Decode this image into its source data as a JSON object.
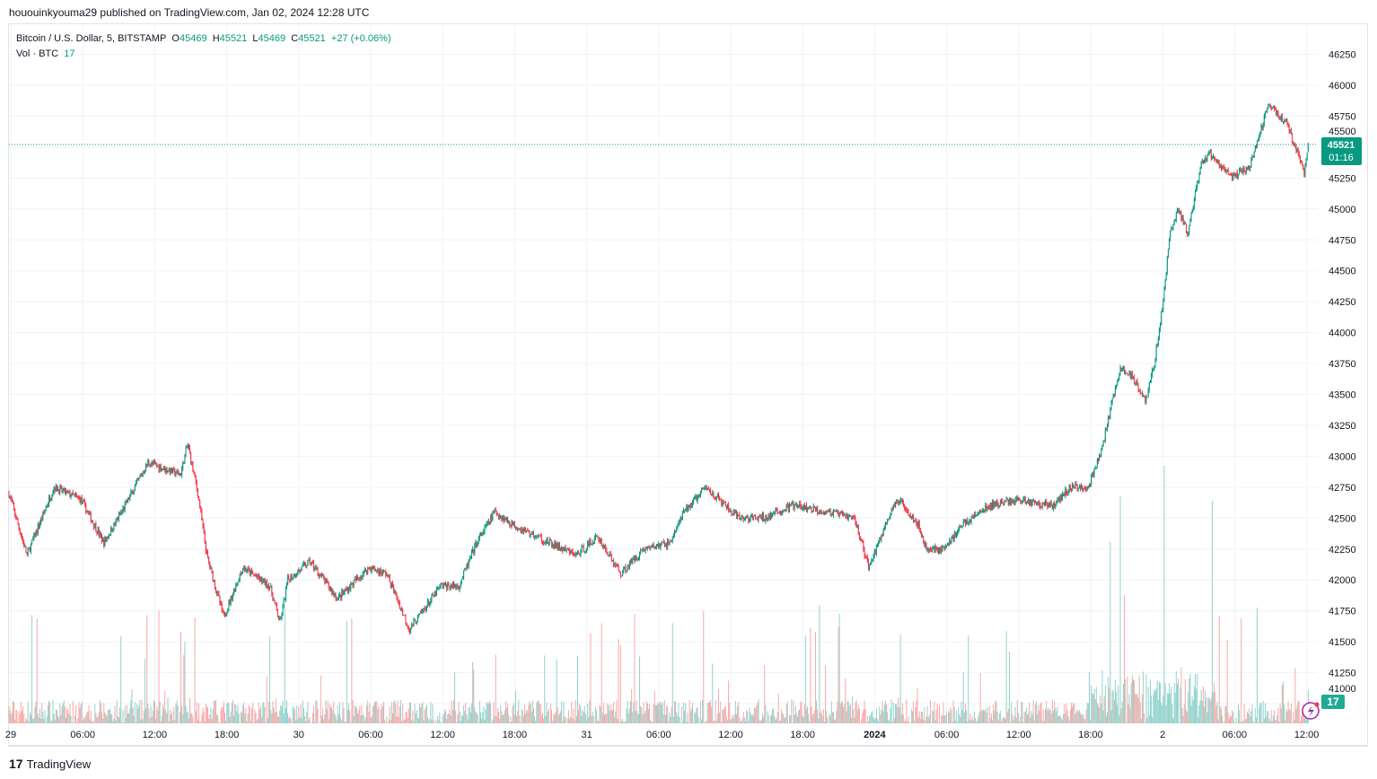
{
  "header": {
    "published": "hououinkyouma29 published on TradingView.com, Jan 02, 2024 12:28 UTC"
  },
  "legend": {
    "symbol": "Bitcoin / U.S. Dollar, 5, BITSTAMP",
    "o_label": "O",
    "o": "45469",
    "h_label": "H",
    "h": "45521",
    "l_label": "L",
    "l": "45469",
    "c_label": "C",
    "c": "45521",
    "change": "+27 (+0.06%)",
    "vol_label": "Vol · BTC",
    "vol": "17"
  },
  "price_tag": {
    "price": "45521",
    "countdown": "01:16"
  },
  "vol_tag": "17",
  "brand": "TradingView",
  "colors": {
    "up": "#089981",
    "down": "#f23645",
    "vol_up": "#92d2cc",
    "vol_down": "#f7a9a7",
    "grid": "#f0f3fa"
  },
  "chart_data": {
    "type": "candlestick",
    "interval": "5m",
    "ylim": [
      41000,
      46250
    ],
    "y_ticks": [
      41000,
      41250,
      41500,
      41750,
      42000,
      42250,
      42500,
      42750,
      43000,
      43250,
      43500,
      43750,
      44000,
      44250,
      44500,
      44750,
      45000,
      45250,
      45500,
      45750,
      46000,
      46250
    ],
    "x_ticks": [
      "29",
      "06:00",
      "12:00",
      "18:00",
      "30",
      "06:00",
      "12:00",
      "18:00",
      "31",
      "06:00",
      "12:00",
      "18:00",
      "2024",
      "06:00",
      "12:00",
      "18:00",
      "2",
      "06:00",
      "12:00"
    ],
    "approx_close_path_hours_from_dec29": [
      [
        0,
        42700
      ],
      [
        1.5,
        42200
      ],
      [
        3.75,
        42750
      ],
      [
        6,
        42650
      ],
      [
        7.9,
        42300
      ],
      [
        9.4,
        42550
      ],
      [
        11.6,
        42950
      ],
      [
        14.3,
        42850
      ],
      [
        14.9,
        43100
      ],
      [
        15.75,
        42700
      ],
      [
        16.5,
        42200
      ],
      [
        17.9,
        41700
      ],
      [
        19.5,
        42100
      ],
      [
        21.75,
        41950
      ],
      [
        22.6,
        41650
      ],
      [
        23.25,
        42000
      ],
      [
        25.1,
        42150
      ],
      [
        27.4,
        41850
      ],
      [
        30,
        42100
      ],
      [
        31.5,
        42050
      ],
      [
        33.4,
        41600
      ],
      [
        36,
        41950
      ],
      [
        37.5,
        41950
      ],
      [
        39,
        42300
      ],
      [
        40.5,
        42550
      ],
      [
        42,
        42450
      ],
      [
        45,
        42300
      ],
      [
        47.3,
        42200
      ],
      [
        49.1,
        42350
      ],
      [
        51,
        42050
      ],
      [
        52.9,
        42250
      ],
      [
        55.1,
        42300
      ],
      [
        56.3,
        42550
      ],
      [
        58.1,
        42750
      ],
      [
        60.8,
        42500
      ],
      [
        63,
        42500
      ],
      [
        65.3,
        42600
      ],
      [
        68.3,
        42550
      ],
      [
        70.5,
        42500
      ],
      [
        71.7,
        42100
      ],
      [
        73.5,
        42550
      ],
      [
        74.3,
        42650
      ],
      [
        75.8,
        42450
      ],
      [
        76.5,
        42250
      ],
      [
        78,
        42250
      ],
      [
        79.5,
        42450
      ],
      [
        81.8,
        42600
      ],
      [
        84,
        42650
      ],
      [
        87,
        42600
      ],
      [
        88.5,
        42750
      ],
      [
        90,
        42750
      ],
      [
        91.1,
        43050
      ],
      [
        92.6,
        43700
      ],
      [
        93.7,
        43650
      ],
      [
        94.8,
        43450
      ],
      [
        95.5,
        43750
      ],
      [
        96.3,
        44300
      ],
      [
        96.8,
        44800
      ],
      [
        97.5,
        45000
      ],
      [
        98.3,
        44800
      ],
      [
        99.4,
        45350
      ],
      [
        100.1,
        45450
      ],
      [
        102,
        45250
      ],
      [
        103.5,
        45350
      ],
      [
        105,
        45850
      ],
      [
        106.5,
        45700
      ],
      [
        108,
        45300
      ],
      [
        108.4,
        45521
      ]
    ],
    "last": {
      "open": 45469,
      "high": 45521,
      "low": 45469,
      "close": 45521,
      "volume": 17
    }
  }
}
